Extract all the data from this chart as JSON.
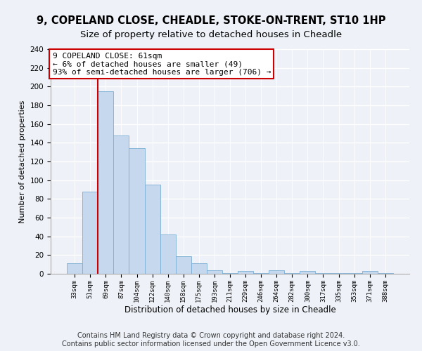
{
  "title": "9, COPELAND CLOSE, CHEADLE, STOKE-ON-TRENT, ST10 1HP",
  "subtitle": "Size of property relative to detached houses in Cheadle",
  "xlabel": "Distribution of detached houses by size in Cheadle",
  "ylabel": "Number of detached properties",
  "bar_labels": [
    "33sqm",
    "51sqm",
    "69sqm",
    "87sqm",
    "104sqm",
    "122sqm",
    "140sqm",
    "158sqm",
    "175sqm",
    "193sqm",
    "211sqm",
    "229sqm",
    "246sqm",
    "264sqm",
    "282sqm",
    "300sqm",
    "317sqm",
    "335sqm",
    "353sqm",
    "371sqm",
    "388sqm"
  ],
  "bar_values": [
    11,
    88,
    195,
    148,
    134,
    95,
    42,
    19,
    11,
    4,
    1,
    3,
    1,
    4,
    1,
    3,
    1,
    1,
    1,
    3,
    1
  ],
  "bar_color": "#c5d8ee",
  "bar_edge_color": "#7bafd4",
  "ylim": [
    0,
    240
  ],
  "yticks": [
    0,
    20,
    40,
    60,
    80,
    100,
    120,
    140,
    160,
    180,
    200,
    220,
    240
  ],
  "vline_x": 1.5,
  "vline_color": "#cc0000",
  "annotation_text": "9 COPELAND CLOSE: 61sqm\n← 6% of detached houses are smaller (49)\n93% of semi-detached houses are larger (706) →",
  "annotation_box_color": "#ffffff",
  "annotation_box_edge_color": "#cc0000",
  "footer_line1": "Contains HM Land Registry data © Crown copyright and database right 2024.",
  "footer_line2": "Contains public sector information licensed under the Open Government Licence v3.0.",
  "background_color": "#eef2f8",
  "plot_background_color": "#eef2f8",
  "title_fontsize": 10.5,
  "subtitle_fontsize": 9.5,
  "footer_fontsize": 7.0
}
